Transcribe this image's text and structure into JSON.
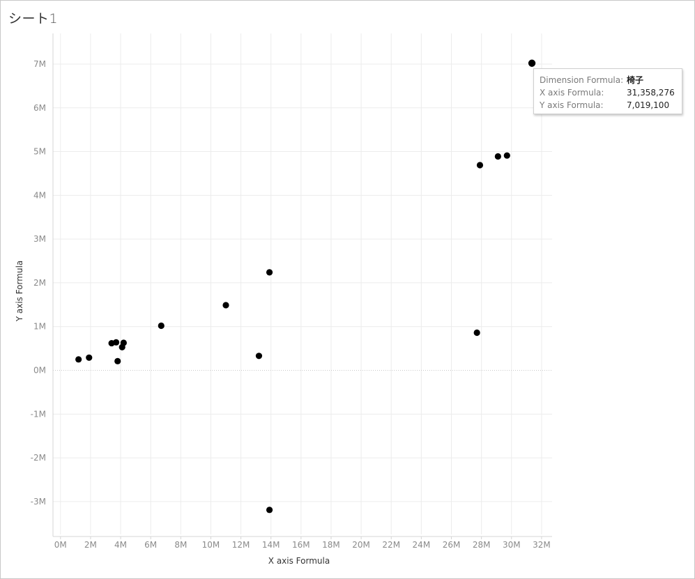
{
  "sheet": {
    "title": "シート",
    "number": "1"
  },
  "tooltip": {
    "rows": [
      {
        "label": "Dimension Formula:",
        "value": "椅子"
      },
      {
        "label": "X axis Formula:",
        "value": "31,358,276"
      },
      {
        "label": "Y axis Formula:",
        "value": "7,019,100"
      }
    ]
  },
  "colors": {
    "point": "#000000",
    "grid": "#ececec",
    "zero_line": "#c8c8c8",
    "axis_line": "#d4d4d4"
  },
  "chart_data": {
    "type": "scatter",
    "title": "",
    "xlabel": "X axis Formula",
    "ylabel": "Y axis Formula",
    "xlim": [
      -0.5,
      32.7
    ],
    "ylim": [
      -3.75,
      7.7
    ],
    "x_ticks": [
      0,
      2,
      4,
      6,
      8,
      10,
      12,
      14,
      16,
      18,
      20,
      22,
      24,
      26,
      28,
      30,
      32
    ],
    "x_tick_labels": [
      "0M",
      "2M",
      "4M",
      "6M",
      "8M",
      "10M",
      "12M",
      "14M",
      "16M",
      "18M",
      "20M",
      "22M",
      "24M",
      "26M",
      "28M",
      "30M",
      "32M"
    ],
    "y_ticks": [
      -3,
      -2,
      -1,
      0,
      1,
      2,
      3,
      4,
      5,
      6,
      7
    ],
    "y_tick_labels": [
      "-3M",
      "-2M",
      "-1M",
      "0M",
      "1M",
      "2M",
      "3M",
      "4M",
      "5M",
      "6M",
      "7M"
    ],
    "units": "millions",
    "grid": true,
    "zero_line_dotted": true,
    "points": [
      {
        "x": 1.2,
        "y": 0.25
      },
      {
        "x": 1.9,
        "y": 0.29
      },
      {
        "x": 3.4,
        "y": 0.62
      },
      {
        "x": 3.7,
        "y": 0.64
      },
      {
        "x": 3.8,
        "y": 0.21
      },
      {
        "x": 4.1,
        "y": 0.53
      },
      {
        "x": 4.2,
        "y": 0.63
      },
      {
        "x": 6.7,
        "y": 1.02
      },
      {
        "x": 11.0,
        "y": 1.49
      },
      {
        "x": 13.2,
        "y": 0.33
      },
      {
        "x": 13.9,
        "y": 2.24
      },
      {
        "x": 13.9,
        "y": -3.19
      },
      {
        "x": 27.7,
        "y": 0.86
      },
      {
        "x": 27.9,
        "y": 4.69
      },
      {
        "x": 29.1,
        "y": 4.89
      },
      {
        "x": 29.7,
        "y": 4.91
      },
      {
        "x": 31.358276,
        "y": 7.0191,
        "highlighted": true
      }
    ]
  }
}
